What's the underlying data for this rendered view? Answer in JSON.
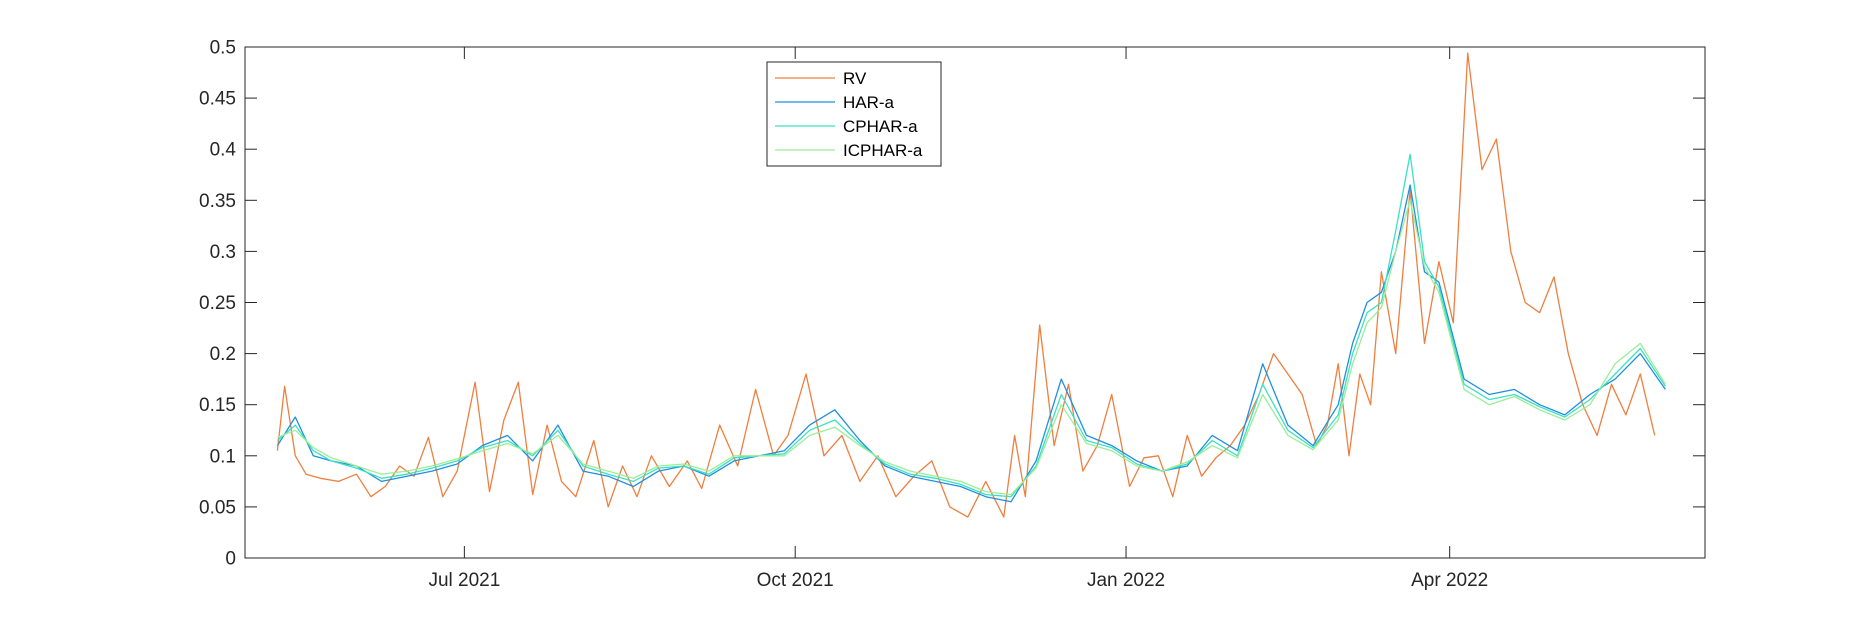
{
  "chart_data": {
    "type": "line",
    "title": "",
    "xlabel": "",
    "ylabel": "",
    "xlim": [
      "2021-05-01",
      "2022-06-11"
    ],
    "ylim": [
      0,
      0.5
    ],
    "y_ticks": [
      "0",
      "0.05",
      "0.1",
      "0.15",
      "0.2",
      "0.25",
      "0.3",
      "0.35",
      "0.4",
      "0.45",
      "0.5"
    ],
    "x_ticks": [
      {
        "date": "2021-07-01",
        "label": "Jul 2021"
      },
      {
        "date": "2021-10-01",
        "label": "Oct 2021"
      },
      {
        "date": "2022-01-01",
        "label": "Jan 2022"
      },
      {
        "date": "2022-04-01",
        "label": "Apr 2022"
      }
    ],
    "grid": false,
    "legend_position": "top-center",
    "series": [
      {
        "name": "RV",
        "color": "#ee7f3f",
        "x": [
          "2021-05-10",
          "2021-05-12",
          "2021-05-15",
          "2021-05-18",
          "2021-05-22",
          "2021-05-27",
          "2021-06-01",
          "2021-06-05",
          "2021-06-09",
          "2021-06-13",
          "2021-06-17",
          "2021-06-21",
          "2021-06-25",
          "2021-06-29",
          "2021-07-04",
          "2021-07-08",
          "2021-07-12",
          "2021-07-16",
          "2021-07-20",
          "2021-07-24",
          "2021-07-28",
          "2021-08-01",
          "2021-08-06",
          "2021-08-10",
          "2021-08-14",
          "2021-08-18",
          "2021-08-22",
          "2021-08-27",
          "2021-09-01",
          "2021-09-05",
          "2021-09-10",
          "2021-09-15",
          "2021-09-20",
          "2021-09-25",
          "2021-09-29",
          "2021-10-04",
          "2021-10-09",
          "2021-10-14",
          "2021-10-19",
          "2021-10-24",
          "2021-10-29",
          "2021-11-03",
          "2021-11-08",
          "2021-11-13",
          "2021-11-18",
          "2021-11-23",
          "2021-11-28",
          "2021-12-01",
          "2021-12-04",
          "2021-12-08",
          "2021-12-12",
          "2021-12-16",
          "2021-12-20",
          "2021-12-24",
          "2021-12-28",
          "2022-01-02",
          "2022-01-06",
          "2022-01-10",
          "2022-01-14",
          "2022-01-18",
          "2022-01-22",
          "2022-01-26",
          "2022-01-30",
          "2022-02-03",
          "2022-02-07",
          "2022-02-11",
          "2022-02-15",
          "2022-02-19",
          "2022-02-23",
          "2022-02-26",
          "2022-03-01",
          "2022-03-04",
          "2022-03-07",
          "2022-03-10",
          "2022-03-13",
          "2022-03-17",
          "2022-03-21",
          "2022-03-25",
          "2022-03-29",
          "2022-04-02",
          "2022-04-06",
          "2022-04-10",
          "2022-04-14",
          "2022-04-18",
          "2022-04-22",
          "2022-04-26",
          "2022-04-30",
          "2022-05-04",
          "2022-05-08",
          "2022-05-12",
          "2022-05-16",
          "2022-05-20",
          "2022-05-24",
          "2022-05-28"
        ],
        "y": [
          0.105,
          0.168,
          0.1,
          0.082,
          0.078,
          0.075,
          0.082,
          0.06,
          0.07,
          0.09,
          0.08,
          0.118,
          0.06,
          0.085,
          0.172,
          0.065,
          0.135,
          0.172,
          0.062,
          0.13,
          0.075,
          0.06,
          0.115,
          0.05,
          0.09,
          0.06,
          0.1,
          0.07,
          0.095,
          0.068,
          0.13,
          0.09,
          0.165,
          0.1,
          0.12,
          0.18,
          0.1,
          0.12,
          0.075,
          0.1,
          0.06,
          0.08,
          0.095,
          0.05,
          0.04,
          0.075,
          0.04,
          0.12,
          0.06,
          0.228,
          0.11,
          0.17,
          0.085,
          0.11,
          0.16,
          0.07,
          0.098,
          0.1,
          0.06,
          0.12,
          0.08,
          0.098,
          0.11,
          0.13,
          0.16,
          0.2,
          0.18,
          0.16,
          0.11,
          0.13,
          0.19,
          0.1,
          0.18,
          0.15,
          0.28,
          0.2,
          0.36,
          0.21,
          0.29,
          0.23,
          0.494,
          0.38,
          0.41,
          0.3,
          0.25,
          0.24,
          0.275,
          0.2,
          0.15,
          0.12,
          0.17,
          0.14,
          0.18,
          0.12
        ]
      },
      {
        "name": "HAR-a",
        "color": "#1f8fe0",
        "x": [
          "2021-05-10",
          "2021-05-15",
          "2021-05-20",
          "2021-05-25",
          "2021-06-01",
          "2021-06-08",
          "2021-06-15",
          "2021-06-22",
          "2021-06-29",
          "2021-07-06",
          "2021-07-13",
          "2021-07-20",
          "2021-07-27",
          "2021-08-03",
          "2021-08-10",
          "2021-08-17",
          "2021-08-24",
          "2021-08-31",
          "2021-09-07",
          "2021-09-14",
          "2021-09-21",
          "2021-09-28",
          "2021-10-05",
          "2021-10-12",
          "2021-10-19",
          "2021-10-26",
          "2021-11-02",
          "2021-11-09",
          "2021-11-16",
          "2021-11-23",
          "2021-11-30",
          "2021-12-07",
          "2021-12-14",
          "2021-12-21",
          "2021-12-28",
          "2022-01-04",
          "2022-01-11",
          "2022-01-18",
          "2022-01-25",
          "2022-02-01",
          "2022-02-08",
          "2022-02-15",
          "2022-02-22",
          "2022-03-01",
          "2022-03-05",
          "2022-03-09",
          "2022-03-13",
          "2022-03-17",
          "2022-03-21",
          "2022-03-25",
          "2022-03-29",
          "2022-04-05",
          "2022-04-12",
          "2022-04-19",
          "2022-04-26",
          "2022-05-03",
          "2022-05-10",
          "2022-05-17",
          "2022-05-24",
          "2022-05-31"
        ],
        "y": [
          0.11,
          0.138,
          0.1,
          0.095,
          0.09,
          0.075,
          0.08,
          0.085,
          0.092,
          0.11,
          0.12,
          0.095,
          0.13,
          0.085,
          0.08,
          0.07,
          0.085,
          0.09,
          0.08,
          0.095,
          0.1,
          0.105,
          0.13,
          0.145,
          0.115,
          0.09,
          0.08,
          0.075,
          0.07,
          0.06,
          0.055,
          0.095,
          0.175,
          0.12,
          0.11,
          0.095,
          0.085,
          0.09,
          0.12,
          0.105,
          0.19,
          0.13,
          0.11,
          0.15,
          0.21,
          0.25,
          0.26,
          0.3,
          0.365,
          0.28,
          0.27,
          0.175,
          0.16,
          0.165,
          0.15,
          0.14,
          0.16,
          0.175,
          0.2,
          0.165
        ]
      },
      {
        "name": "CPHAR-a",
        "color": "#3ce0c4",
        "x": [
          "2021-05-10",
          "2021-05-15",
          "2021-05-20",
          "2021-05-25",
          "2021-06-01",
          "2021-06-08",
          "2021-06-15",
          "2021-06-22",
          "2021-06-29",
          "2021-07-06",
          "2021-07-13",
          "2021-07-20",
          "2021-07-27",
          "2021-08-03",
          "2021-08-10",
          "2021-08-17",
          "2021-08-24",
          "2021-08-31",
          "2021-09-07",
          "2021-09-14",
          "2021-09-21",
          "2021-09-28",
          "2021-10-05",
          "2021-10-12",
          "2021-10-19",
          "2021-10-26",
          "2021-11-02",
          "2021-11-09",
          "2021-11-16",
          "2021-11-23",
          "2021-11-30",
          "2021-12-07",
          "2021-12-14",
          "2021-12-21",
          "2021-12-28",
          "2022-01-04",
          "2022-01-11",
          "2022-01-18",
          "2022-01-25",
          "2022-02-01",
          "2022-02-08",
          "2022-02-15",
          "2022-02-22",
          "2022-03-01",
          "2022-03-05",
          "2022-03-09",
          "2022-03-13",
          "2022-03-17",
          "2022-03-21",
          "2022-03-25",
          "2022-03-29",
          "2022-04-05",
          "2022-04-12",
          "2022-04-19",
          "2022-04-26",
          "2022-05-03",
          "2022-05-10",
          "2022-05-17",
          "2022-05-24",
          "2022-05-31"
        ],
        "y": [
          0.115,
          0.13,
          0.105,
          0.095,
          0.088,
          0.078,
          0.082,
          0.088,
          0.095,
          0.108,
          0.115,
          0.1,
          0.125,
          0.09,
          0.082,
          0.075,
          0.088,
          0.09,
          0.082,
          0.098,
          0.1,
          0.102,
          0.125,
          0.135,
          0.112,
          0.092,
          0.082,
          0.078,
          0.072,
          0.062,
          0.06,
          0.09,
          0.16,
          0.115,
          0.108,
          0.092,
          0.085,
          0.092,
          0.115,
          0.1,
          0.17,
          0.125,
          0.108,
          0.14,
          0.2,
          0.24,
          0.25,
          0.32,
          0.395,
          0.29,
          0.265,
          0.17,
          0.155,
          0.16,
          0.148,
          0.138,
          0.155,
          0.18,
          0.205,
          0.168
        ]
      },
      {
        "name": "ICPHAR-a",
        "color": "#9aee98",
        "x": [
          "2021-05-10",
          "2021-05-15",
          "2021-05-20",
          "2021-05-25",
          "2021-06-01",
          "2021-06-08",
          "2021-06-15",
          "2021-06-22",
          "2021-06-29",
          "2021-07-06",
          "2021-07-13",
          "2021-07-20",
          "2021-07-27",
          "2021-08-03",
          "2021-08-10",
          "2021-08-17",
          "2021-08-24",
          "2021-08-31",
          "2021-09-07",
          "2021-09-14",
          "2021-09-21",
          "2021-09-28",
          "2021-10-05",
          "2021-10-12",
          "2021-10-19",
          "2021-10-26",
          "2021-11-02",
          "2021-11-09",
          "2021-11-16",
          "2021-11-23",
          "2021-11-30",
          "2021-12-07",
          "2021-12-14",
          "2021-12-21",
          "2021-12-28",
          "2022-01-04",
          "2022-01-11",
          "2022-01-18",
          "2022-01-25",
          "2022-02-01",
          "2022-02-08",
          "2022-02-15",
          "2022-02-22",
          "2022-03-01",
          "2022-03-05",
          "2022-03-09",
          "2022-03-13",
          "2022-03-17",
          "2022-03-21",
          "2022-03-25",
          "2022-03-29",
          "2022-04-05",
          "2022-04-12",
          "2022-04-19",
          "2022-04-26",
          "2022-05-03",
          "2022-05-10",
          "2022-05-17",
          "2022-05-24",
          "2022-05-31"
        ],
        "y": [
          0.118,
          0.125,
          0.108,
          0.098,
          0.09,
          0.082,
          0.085,
          0.09,
          0.097,
          0.105,
          0.112,
          0.102,
          0.12,
          0.092,
          0.085,
          0.078,
          0.09,
          0.092,
          0.085,
          0.1,
          0.1,
          0.1,
          0.12,
          0.128,
          0.11,
          0.094,
          0.085,
          0.08,
          0.075,
          0.065,
          0.062,
          0.088,
          0.15,
          0.112,
          0.105,
          0.09,
          0.085,
          0.094,
          0.11,
          0.098,
          0.16,
          0.12,
          0.106,
          0.135,
          0.19,
          0.23,
          0.245,
          0.3,
          0.35,
          0.285,
          0.26,
          0.165,
          0.15,
          0.158,
          0.145,
          0.135,
          0.15,
          0.19,
          0.21,
          0.17
        ]
      }
    ]
  }
}
